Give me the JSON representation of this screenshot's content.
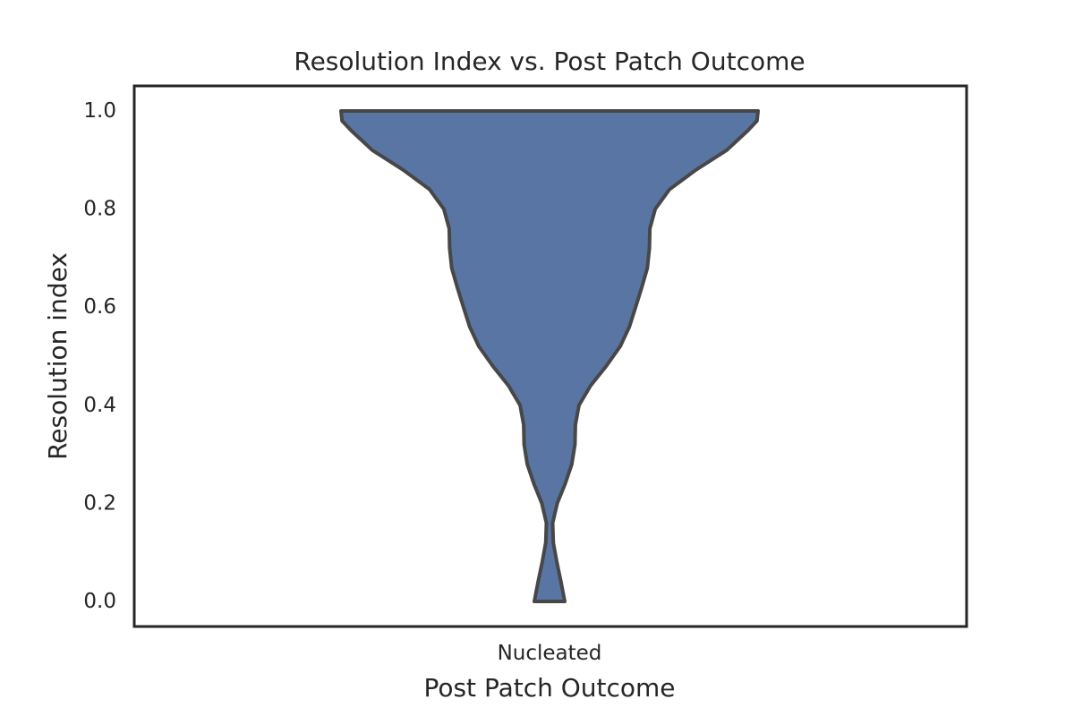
{
  "chart_data": {
    "type": "violin",
    "title": "Resolution Index vs. Post Patch Outcome",
    "xlabel": "Post Patch Outcome",
    "ylabel": "Resolution index",
    "categories": [
      "Nucleated"
    ],
    "yticks": [
      "0.0",
      "0.2",
      "0.4",
      "0.6",
      "0.8",
      "1.0"
    ],
    "ylim": [
      -0.05,
      1.05
    ],
    "data_range": [
      0.0,
      1.0
    ],
    "grid": false,
    "density_profile": [
      {
        "y": 0.0,
        "w": 0.073
      },
      {
        "y": 0.04,
        "w": 0.055
      },
      {
        "y": 0.08,
        "w": 0.035
      },
      {
        "y": 0.12,
        "w": 0.018
      },
      {
        "y": 0.16,
        "w": 0.015
      },
      {
        "y": 0.2,
        "w": 0.037
      },
      {
        "y": 0.24,
        "w": 0.075
      },
      {
        "y": 0.28,
        "w": 0.107
      },
      {
        "y": 0.32,
        "w": 0.122
      },
      {
        "y": 0.36,
        "w": 0.124
      },
      {
        "y": 0.4,
        "w": 0.141
      },
      {
        "y": 0.44,
        "w": 0.197
      },
      {
        "y": 0.48,
        "w": 0.272
      },
      {
        "y": 0.52,
        "w": 0.339
      },
      {
        "y": 0.56,
        "w": 0.383
      },
      {
        "y": 0.6,
        "w": 0.413
      },
      {
        "y": 0.64,
        "w": 0.442
      },
      {
        "y": 0.68,
        "w": 0.469
      },
      {
        "y": 0.72,
        "w": 0.479
      },
      {
        "y": 0.76,
        "w": 0.481
      },
      {
        "y": 0.8,
        "w": 0.507
      },
      {
        "y": 0.84,
        "w": 0.575
      },
      {
        "y": 0.88,
        "w": 0.702
      },
      {
        "y": 0.92,
        "w": 0.85
      },
      {
        "y": 0.96,
        "w": 0.951
      },
      {
        "y": 0.98,
        "w": 0.995
      },
      {
        "y": 1.0,
        "w": 1.0
      }
    ],
    "colors": {
      "fill": "#5975a4",
      "stroke": "#474747",
      "frame": "#262626",
      "text": "#262626"
    }
  }
}
